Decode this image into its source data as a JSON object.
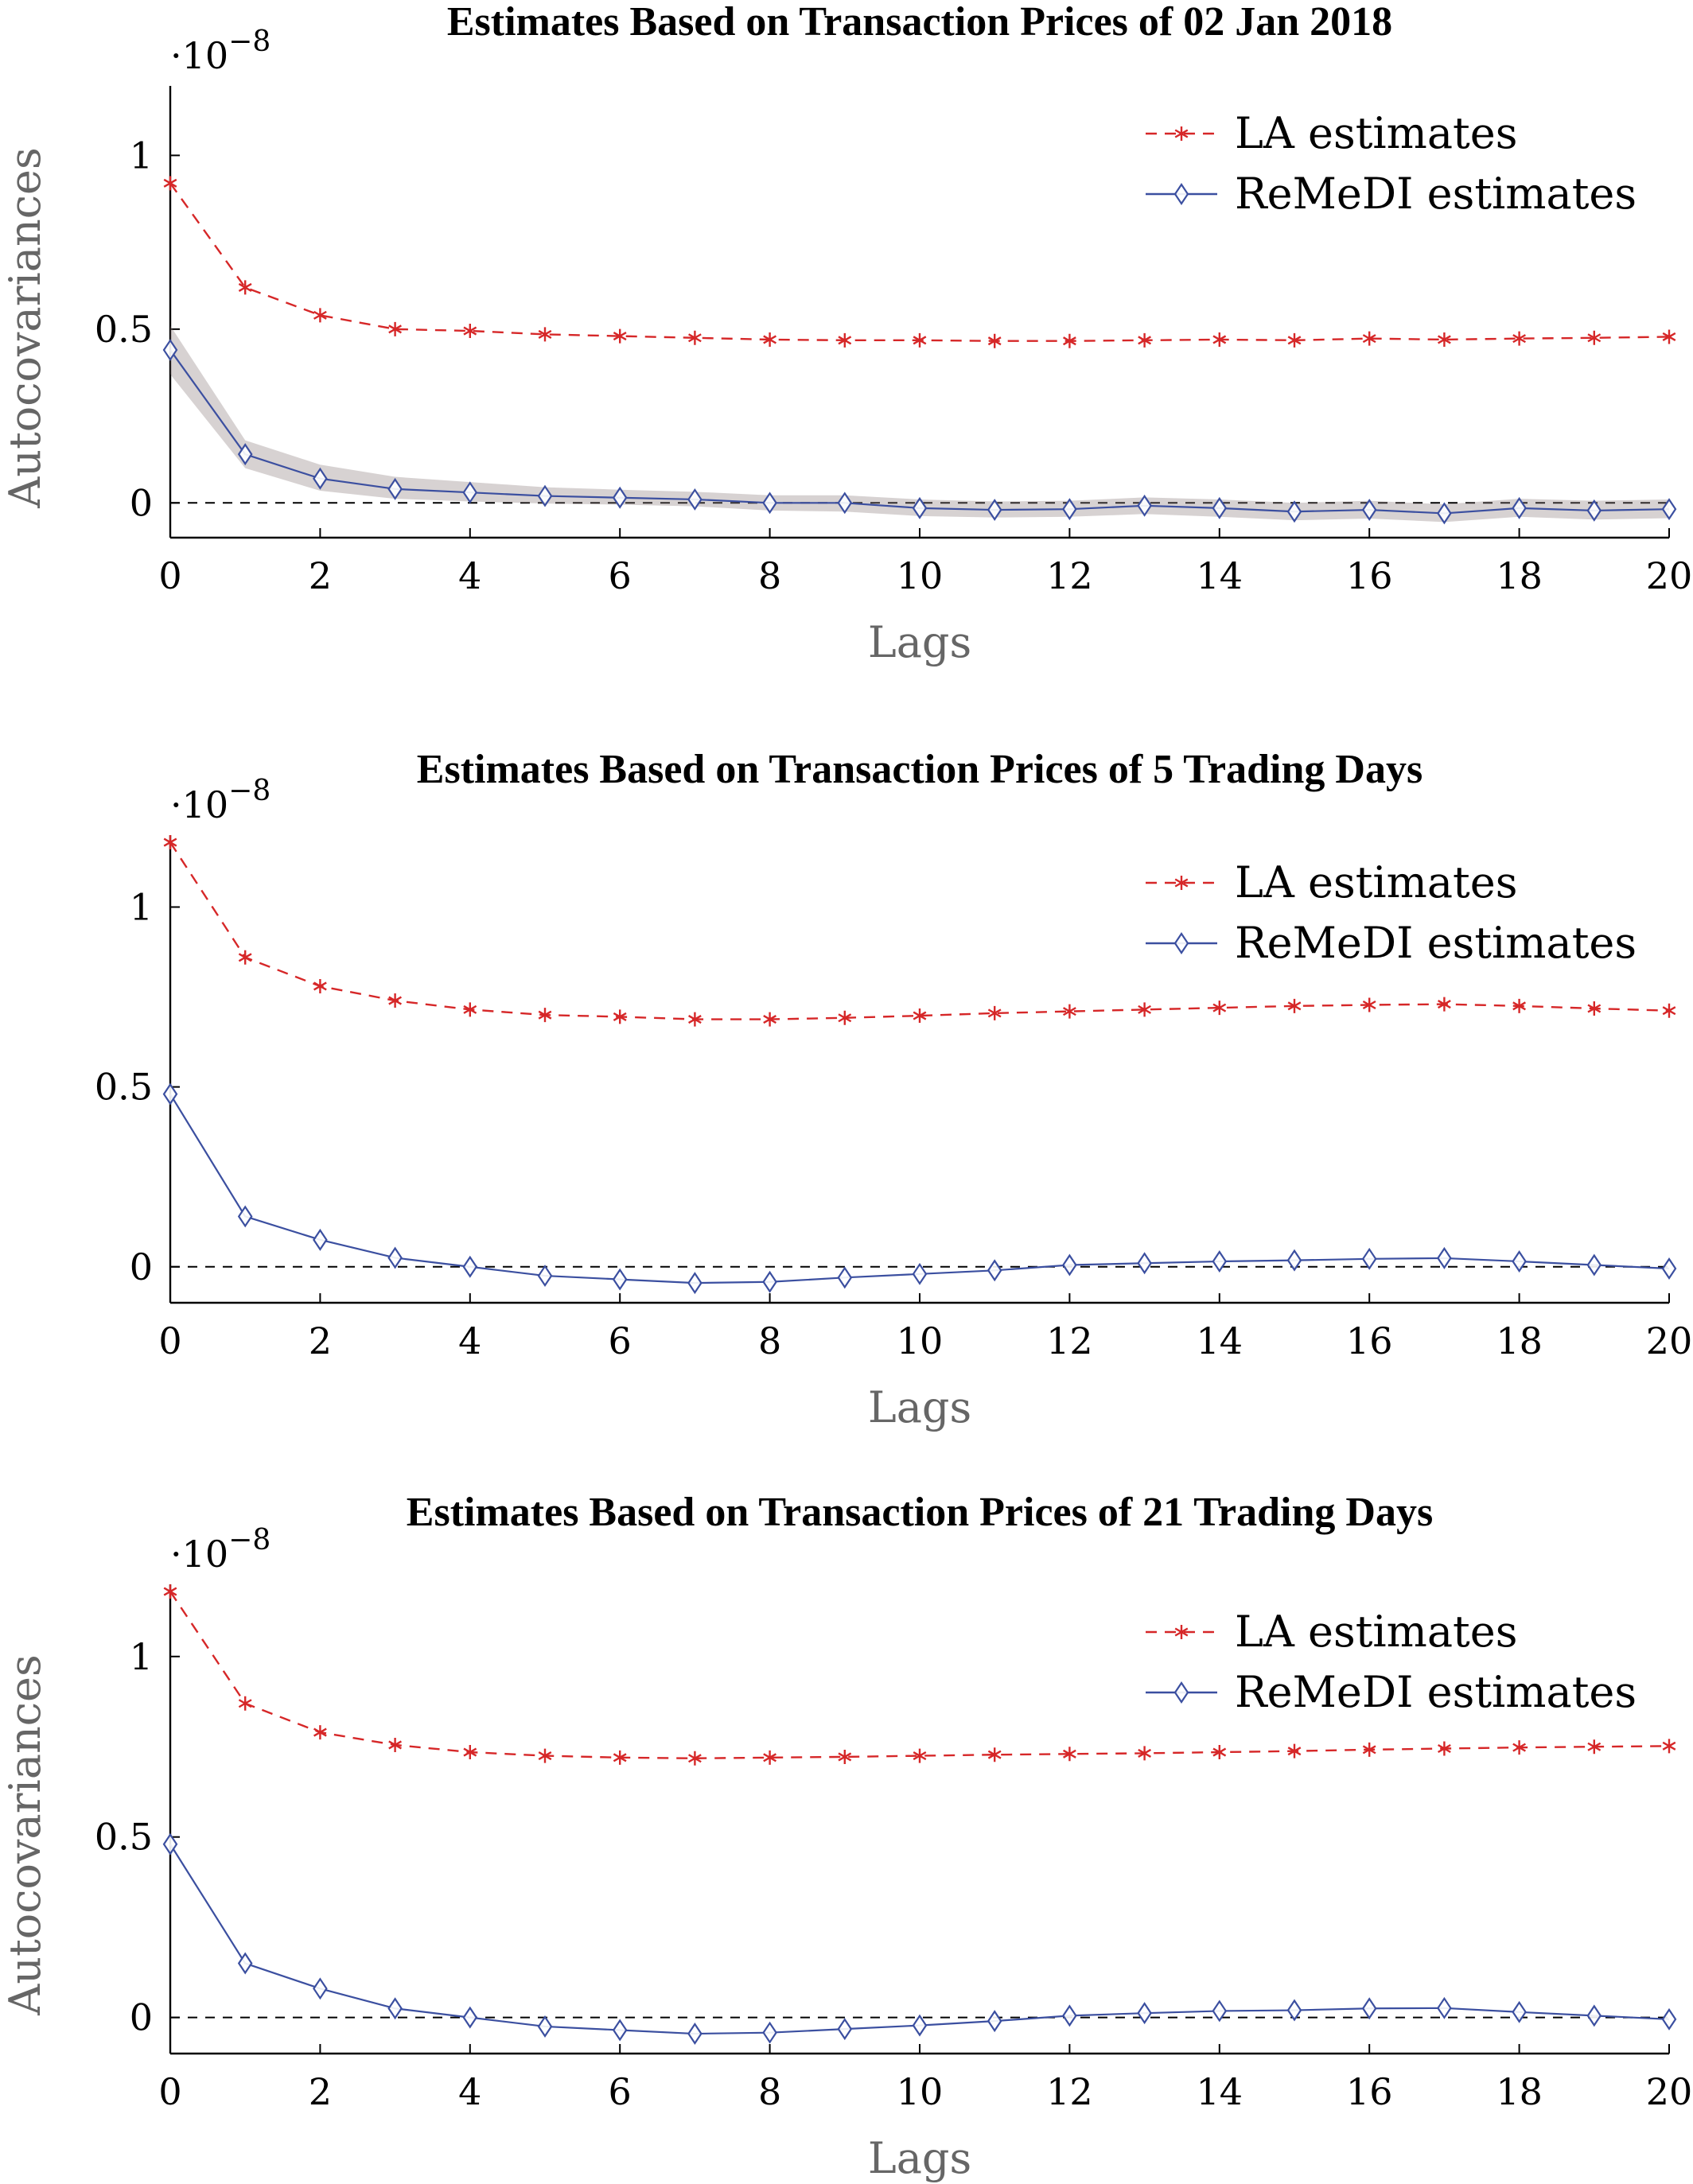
{
  "chart_data": [
    {
      "type": "line",
      "title": "Estimates Based on Transaction Prices of 02 Jan 2018",
      "xlabel": "Lags",
      "ylabel": "Autocovariances",
      "y_scale_label": "·10",
      "y_scale_exponent": "−8",
      "xlim": [
        0,
        20
      ],
      "ylim": [
        -0.1,
        1.2
      ],
      "x_ticks": [
        0,
        2,
        4,
        6,
        8,
        10,
        12,
        14,
        16,
        18,
        20
      ],
      "y_ticks": [
        0,
        0.5,
        1
      ],
      "y_tick_labels": [
        "0",
        "0.5",
        "1"
      ],
      "reference_line_y": 0,
      "legend_position": "top-right",
      "x": [
        0,
        1,
        2,
        3,
        4,
        5,
        6,
        7,
        8,
        9,
        10,
        11,
        12,
        13,
        14,
        15,
        16,
        17,
        18,
        19,
        20
      ],
      "series": [
        {
          "name": "LA estimates",
          "color": "#d62728",
          "style": "dashed",
          "marker": "asterisk",
          "values": [
            0.92,
            0.62,
            0.54,
            0.5,
            0.495,
            0.485,
            0.48,
            0.475,
            0.47,
            0.468,
            0.468,
            0.466,
            0.466,
            0.468,
            0.47,
            0.468,
            0.473,
            0.47,
            0.473,
            0.475,
            0.478
          ]
        },
        {
          "name": "ReMeDI estimates",
          "color": "#3b4fa0",
          "style": "solid",
          "marker": "diamond",
          "values": [
            0.44,
            0.14,
            0.07,
            0.04,
            0.03,
            0.02,
            0.015,
            0.01,
            0.0,
            0.0,
            -0.015,
            -0.02,
            -0.018,
            -0.008,
            -0.015,
            -0.025,
            -0.02,
            -0.03,
            -0.015,
            -0.022,
            -0.018
          ],
          "band_lower": [
            0.37,
            0.1,
            0.035,
            0.012,
            0.004,
            -0.002,
            -0.005,
            -0.01,
            -0.022,
            -0.025,
            -0.038,
            -0.042,
            -0.04,
            -0.032,
            -0.04,
            -0.05,
            -0.045,
            -0.055,
            -0.04,
            -0.048,
            -0.044
          ],
          "band_upper": [
            0.51,
            0.18,
            0.11,
            0.075,
            0.06,
            0.045,
            0.038,
            0.032,
            0.022,
            0.022,
            0.01,
            0.004,
            0.006,
            0.016,
            0.01,
            0.0,
            0.006,
            -0.004,
            0.012,
            0.006,
            0.01
          ]
        }
      ]
    },
    {
      "type": "line",
      "title": "Estimates Based on Transaction Prices of 5 Trading Days",
      "xlabel": "Lags",
      "ylabel": "",
      "y_scale_label": "·10",
      "y_scale_exponent": "−8",
      "xlim": [
        0,
        20
      ],
      "ylim": [
        -0.1,
        1.2
      ],
      "x_ticks": [
        0,
        2,
        4,
        6,
        8,
        10,
        12,
        14,
        16,
        18,
        20
      ],
      "y_ticks": [
        0,
        0.5,
        1
      ],
      "y_tick_labels": [
        "0",
        "0.5",
        "1"
      ],
      "reference_line_y": 0,
      "legend_position": "top-right",
      "x": [
        0,
        1,
        2,
        3,
        4,
        5,
        6,
        7,
        8,
        9,
        10,
        11,
        12,
        13,
        14,
        15,
        16,
        17,
        18,
        19,
        20
      ],
      "series": [
        {
          "name": "LA estimates",
          "color": "#d62728",
          "style": "dashed",
          "marker": "asterisk",
          "values": [
            1.18,
            0.86,
            0.78,
            0.74,
            0.715,
            0.7,
            0.695,
            0.688,
            0.688,
            0.692,
            0.698,
            0.705,
            0.71,
            0.715,
            0.72,
            0.725,
            0.728,
            0.73,
            0.725,
            0.718,
            0.712
          ]
        },
        {
          "name": "ReMeDI estimates",
          "color": "#3b4fa0",
          "style": "solid",
          "marker": "diamond",
          "values": [
            0.48,
            0.14,
            0.075,
            0.025,
            0.0,
            -0.025,
            -0.035,
            -0.045,
            -0.042,
            -0.03,
            -0.02,
            -0.01,
            0.005,
            0.01,
            0.015,
            0.018,
            0.022,
            0.024,
            0.015,
            0.005,
            -0.005
          ]
        }
      ]
    },
    {
      "type": "line",
      "title": "Estimates Based on Transaction Prices of 21 Trading Days",
      "xlabel": "Lags",
      "ylabel": "Autocovariances",
      "y_scale_label": "·10",
      "y_scale_exponent": "−8",
      "xlim": [
        0,
        20
      ],
      "ylim": [
        -0.1,
        1.2
      ],
      "x_ticks": [
        0,
        2,
        4,
        6,
        8,
        10,
        12,
        14,
        16,
        18,
        20
      ],
      "y_ticks": [
        0,
        0.5,
        1
      ],
      "y_tick_labels": [
        "0",
        "0.5",
        "1"
      ],
      "reference_line_y": 0,
      "legend_position": "top-right",
      "x": [
        0,
        1,
        2,
        3,
        4,
        5,
        6,
        7,
        8,
        9,
        10,
        11,
        12,
        13,
        14,
        15,
        16,
        17,
        18,
        19,
        20
      ],
      "series": [
        {
          "name": "LA estimates",
          "color": "#d62728",
          "style": "dashed",
          "marker": "asterisk",
          "values": [
            1.18,
            0.87,
            0.79,
            0.755,
            0.735,
            0.725,
            0.72,
            0.718,
            0.72,
            0.722,
            0.725,
            0.728,
            0.73,
            0.732,
            0.735,
            0.738,
            0.742,
            0.745,
            0.748,
            0.75,
            0.752
          ]
        },
        {
          "name": "ReMeDI estimates",
          "color": "#3b4fa0",
          "style": "solid",
          "marker": "diamond",
          "values": [
            0.48,
            0.15,
            0.08,
            0.025,
            0.0,
            -0.025,
            -0.035,
            -0.045,
            -0.042,
            -0.032,
            -0.022,
            -0.01,
            0.005,
            0.012,
            0.018,
            0.02,
            0.025,
            0.026,
            0.015,
            0.005,
            -0.005
          ]
        }
      ]
    }
  ]
}
